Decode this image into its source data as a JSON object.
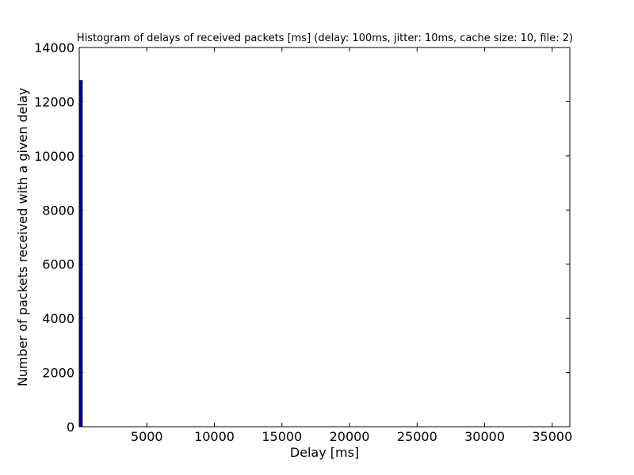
{
  "chart_data": {
    "type": "bar",
    "title": "Histogram of delays of received packets [ms] (delay: 100ms, jitter: 10ms, cache size: 10, file: 2)",
    "xlabel": "Delay [ms]",
    "ylabel": "Number of packets received with a given delay",
    "xlim": [
      0,
      36300
    ],
    "ylim": [
      0,
      14000
    ],
    "xticks": [
      5000,
      10000,
      15000,
      20000,
      25000,
      30000,
      35000
    ],
    "yticks": [
      0,
      2000,
      4000,
      6000,
      8000,
      10000,
      12000,
      14000
    ],
    "grid": false,
    "bins": [
      {
        "x0": 0,
        "x1": 220,
        "count": 12780
      }
    ],
    "bar_color": "#0000aa"
  }
}
